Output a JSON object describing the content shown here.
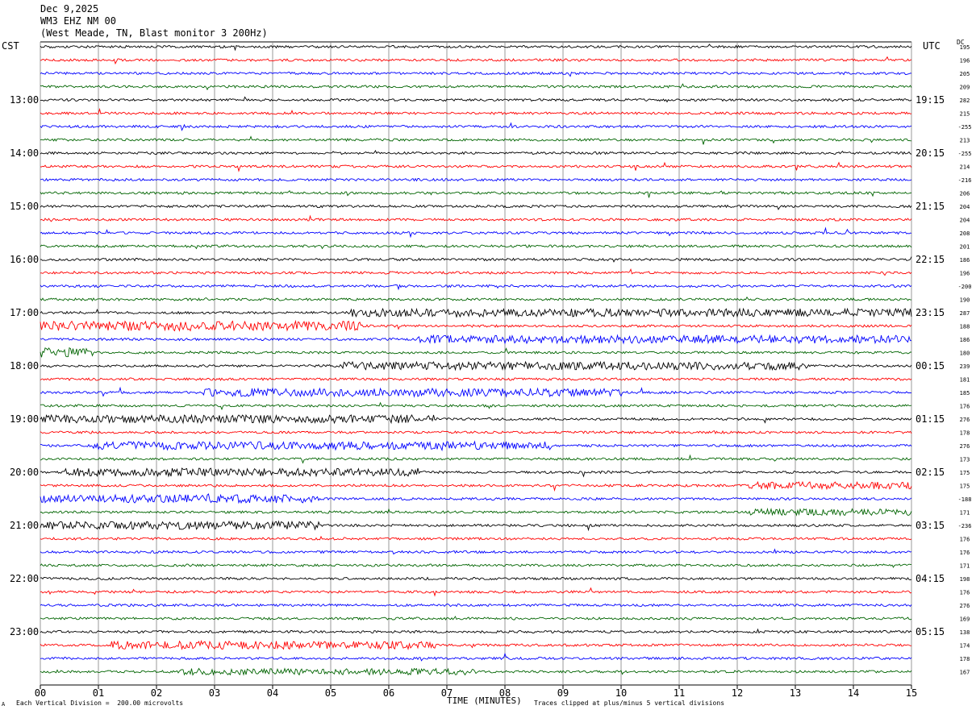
{
  "header": {
    "date": "Dec 9,2025",
    "station": "WM3 EHZ NM 00",
    "location": "(West Meade, TN, Blast monitor 3 200Hz)"
  },
  "left_tz": "CST",
  "right_tz": "UTC",
  "dc_label": "DC",
  "footer": {
    "scale_note": "Each Vertical Division =  200.00 microvolts",
    "clip_note": "Traces clipped at plus/minus 5 vertical divisions",
    "marker": "A"
  },
  "chart_data": {
    "type": "line",
    "title": "",
    "xlabel": "TIME (MINUTES)",
    "ylabel": "",
    "xlim": [
      0,
      15
    ],
    "x_ticks": [
      "00",
      "01",
      "02",
      "03",
      "04",
      "05",
      "06",
      "07",
      "08",
      "09",
      "10",
      "11",
      "12",
      "13",
      "14",
      "15"
    ],
    "trace_colors": [
      "#000000",
      "#ff0000",
      "#0000ff",
      "#006400"
    ],
    "grid": "vertical lines every minute",
    "left_hour_labels": [
      "13:00",
      "14:00",
      "15:00",
      "16:00",
      "17:00",
      "18:00",
      "19:00",
      "20:00",
      "21:00",
      "22:00",
      "23:00"
    ],
    "right_hour_labels": [
      "19:15",
      "20:15",
      "21:15",
      "22:15",
      "23:15",
      "00:15",
      "01:15",
      "02:15",
      "03:15",
      "04:15",
      "05:15"
    ],
    "dc_offsets": [
      "195",
      "196",
      "205",
      "209",
      "282",
      "215",
      "-255",
      "213",
      "-255",
      "214",
      "-216",
      "206",
      "204",
      "204",
      "208",
      "201",
      "186",
      "196",
      "-200",
      "190",
      "287",
      "188",
      "186",
      "180",
      "239",
      "181",
      "185",
      "176",
      "276",
      "178",
      "276",
      "173",
      "175",
      "175",
      "-188",
      "171",
      "-236",
      "176",
      "176",
      "171",
      "198",
      "176",
      "276",
      "169",
      "138",
      "174",
      "178",
      "167"
    ]
  }
}
